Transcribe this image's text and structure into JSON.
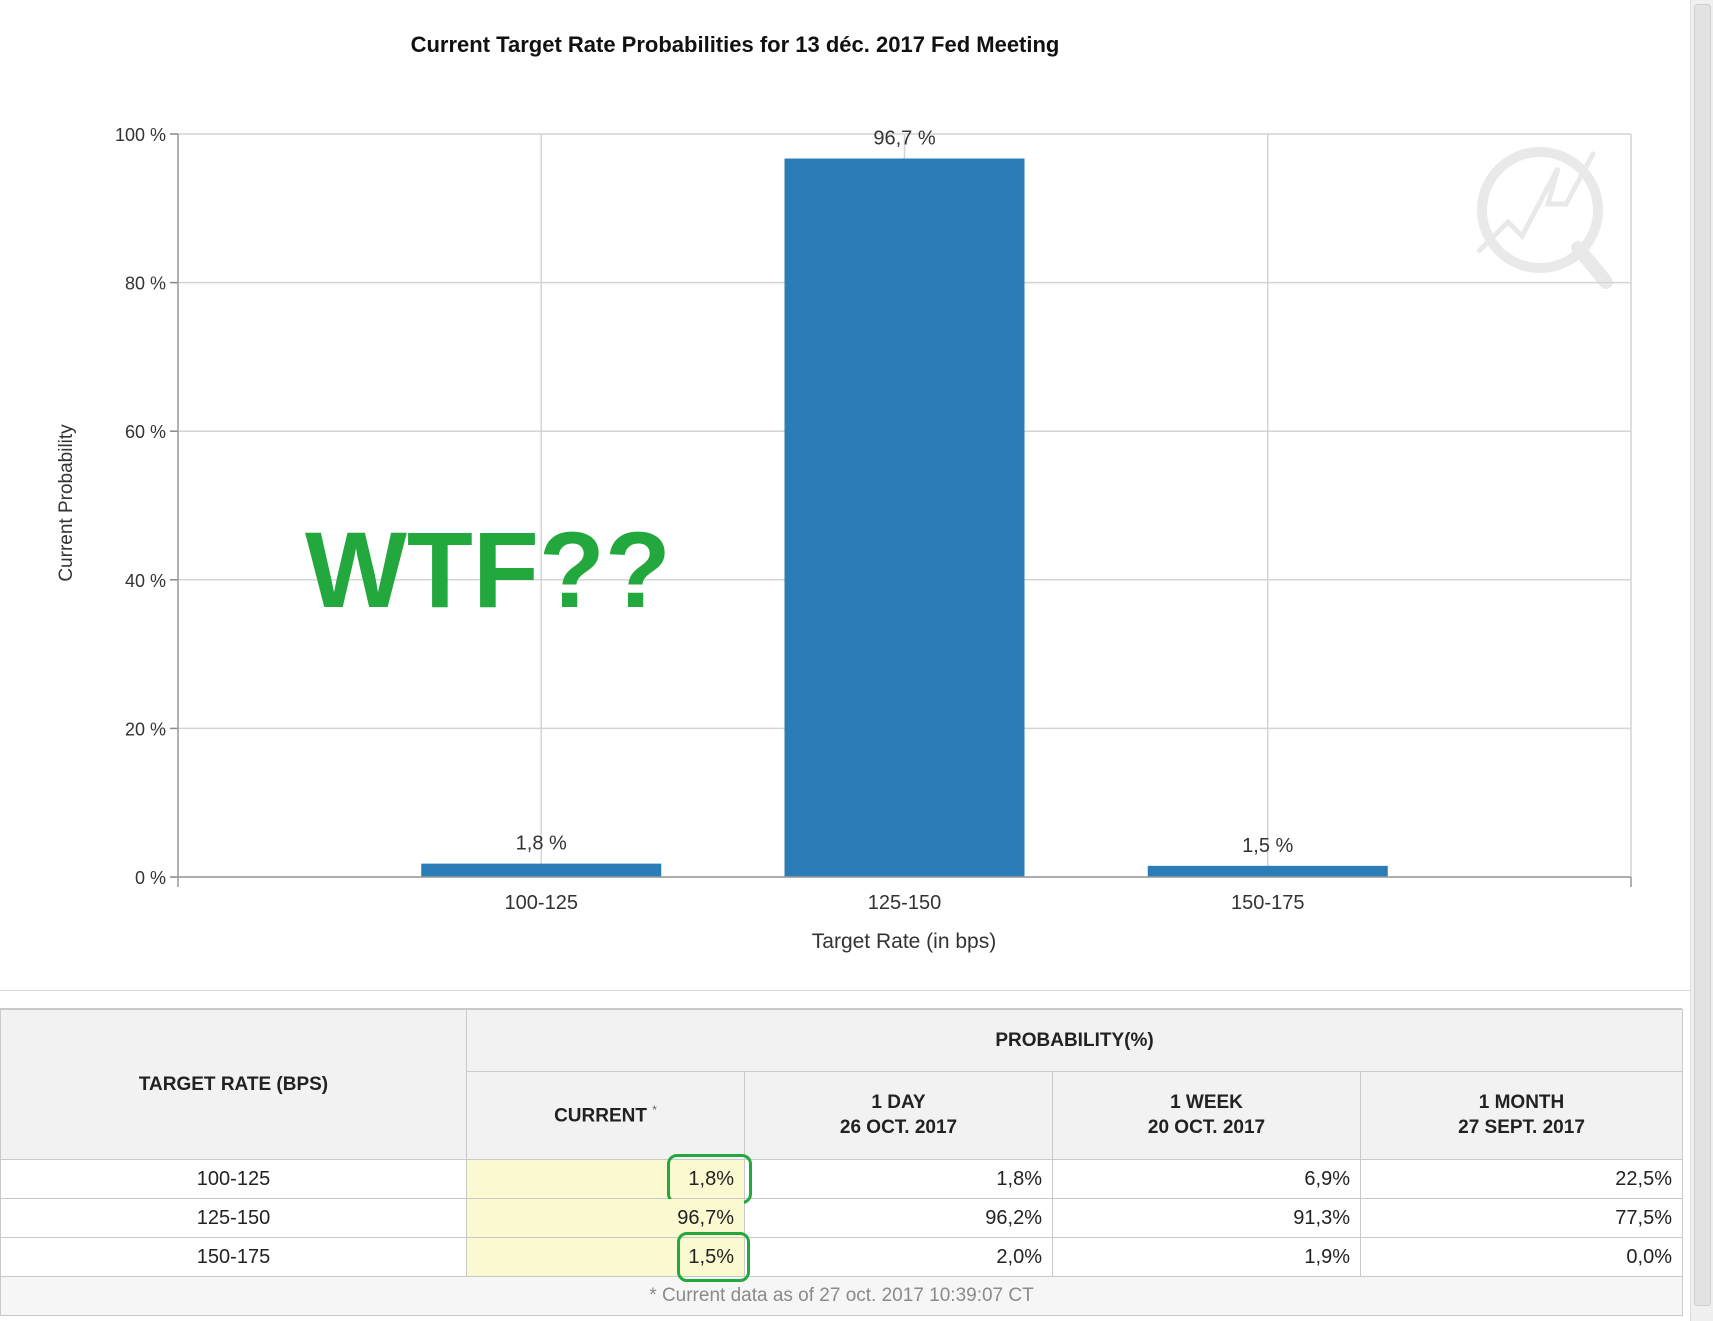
{
  "chart_data": {
    "type": "bar",
    "title": "Current Target Rate Probabilities for 13 déc. 2017 Fed Meeting",
    "xlabel": "Target Rate (in bps)",
    "ylabel": "Current Probability",
    "categories": [
      "100-125",
      "125-150",
      "150-175"
    ],
    "values": [
      1.8,
      96.7,
      1.5
    ],
    "value_labels": [
      "1,8 %",
      "96,7 %",
      "1,5 %"
    ],
    "ylim": [
      0,
      100
    ],
    "yticks": [
      0,
      20,
      40,
      60,
      80,
      100
    ],
    "ytick_labels": [
      "0 %",
      "20 %",
      "40 %",
      "60 %",
      "80 %",
      "100 %"
    ],
    "grid": true,
    "bar_color": "#2a7db6",
    "annotation": {
      "text": "WTF??",
      "color": "#22a83c"
    }
  },
  "table": {
    "rate_header": "TARGET RATE (BPS)",
    "probability_header": "PROBABILITY(%)",
    "columns": [
      {
        "label": "CURRENT",
        "date": "",
        "star": "*"
      },
      {
        "label": "1 DAY",
        "date": "26 OCT. 2017"
      },
      {
        "label": "1 WEEK",
        "date": "20 OCT. 2017"
      },
      {
        "label": "1 MONTH",
        "date": "27 SEPT. 2017"
      }
    ],
    "rows": [
      {
        "rate": "100-125",
        "values": [
          "1,8%",
          "1,8%",
          "6,9%",
          "22,5%"
        ],
        "highlight": true
      },
      {
        "rate": "125-150",
        "values": [
          "96,7%",
          "96,2%",
          "91,3%",
          "77,5%"
        ],
        "highlight": false
      },
      {
        "rate": "150-175",
        "values": [
          "1,5%",
          "2,0%",
          "1,9%",
          "0,0%"
        ],
        "highlight": true
      }
    ],
    "footnote": "* Current data as of 27 oct. 2017 10:39:07 CT",
    "highlight_color": "#22a83c",
    "current_cell_bg": "#fbf9cf"
  }
}
